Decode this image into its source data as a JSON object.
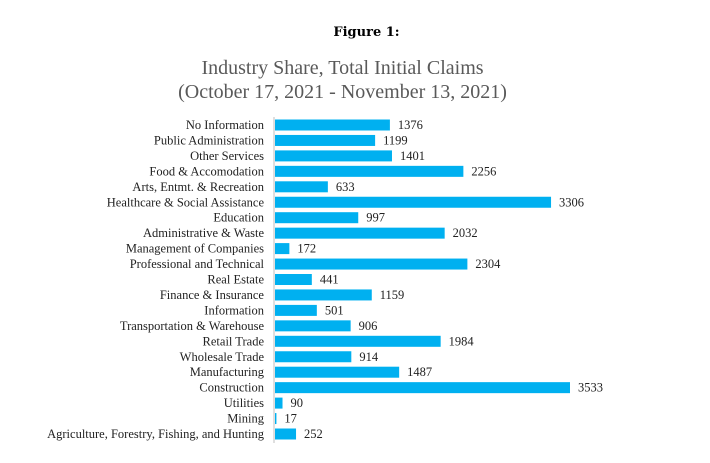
{
  "figure": {
    "label": "Figure 1:"
  },
  "chart_data": {
    "type": "bar",
    "orientation": "horizontal",
    "title": "Industry Share, Total Initial Claims",
    "subtitle": "(October 17, 2021 - November 13, 2021)",
    "xlabel": "",
    "ylabel": "",
    "grid": false,
    "legend": "none",
    "bar_color": "#00B0F0",
    "xlim": [
      0,
      3533
    ],
    "categories": [
      "No Information",
      "Public Administration",
      "Other Services",
      "Food & Accomodation",
      "Arts, Entmt. & Recreation",
      "Healthcare & Social Assistance",
      "Education",
      "Administrative & Waste",
      "Management of Companies",
      "Professional and Technical",
      "Real Estate",
      "Finance & Insurance",
      "Information",
      "Transportation & Warehouse",
      "Retail Trade",
      "Wholesale Trade",
      "Manufacturing",
      "Construction",
      "Utilities",
      "Mining",
      "Agriculture, Forestry, Fishing, and Hunting"
    ],
    "values": [
      1376,
      1199,
      1401,
      2256,
      633,
      3306,
      997,
      2032,
      172,
      2304,
      441,
      1159,
      501,
      906,
      1984,
      914,
      1487,
      3533,
      90,
      17,
      252
    ]
  }
}
